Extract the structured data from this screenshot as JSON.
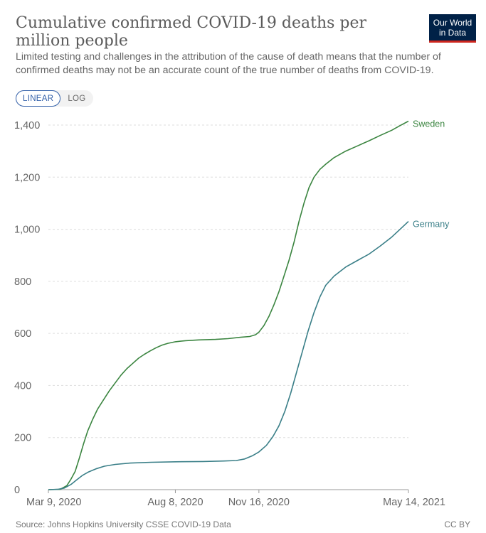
{
  "header": {
    "title": "Cumulative confirmed COVID-19 deaths per million people",
    "subtitle": "Limited testing and challenges in the attribution of the cause of death means that the number of confirmed deaths may not be an accurate count of the true number of deaths from COVID-19.",
    "logo_line1": "Our World",
    "logo_line2": "in Data"
  },
  "controls": {
    "linear_label": "LINEAR",
    "log_label": "LOG",
    "selected": "LINEAR"
  },
  "footer": {
    "source": "Source: Johns Hopkins University CSSE COVID-19 Data",
    "license": "CC BY"
  },
  "chart_data": {
    "type": "line",
    "title": "Cumulative confirmed COVID-19 deaths per million people",
    "xlabel": "",
    "ylabel": "",
    "x_ticks": [
      "Mar 9, 2020",
      "Aug 8, 2020",
      "Nov 16, 2020",
      "May 14, 2021"
    ],
    "x_start": "2020-03-09",
    "x_end": "2021-05-14",
    "ylim": [
      0,
      1400
    ],
    "y_ticks": [
      0,
      200,
      400,
      600,
      800,
      1000,
      1200,
      1400
    ],
    "y_tick_labels": [
      "0",
      "200",
      "400",
      "600",
      "800",
      "1,000",
      "1,200",
      "1,400"
    ],
    "grid": true,
    "legend": "line-end labels",
    "series": [
      {
        "name": "Sweden",
        "color": "#3b8540",
        "points": [
          [
            "2020-03-09",
            0
          ],
          [
            "2020-03-23",
            1
          ],
          [
            "2020-03-31",
            15
          ],
          [
            "2020-04-05",
            40
          ],
          [
            "2020-04-10",
            70
          ],
          [
            "2020-04-15",
            120
          ],
          [
            "2020-04-20",
            175
          ],
          [
            "2020-04-25",
            225
          ],
          [
            "2020-05-01",
            270
          ],
          [
            "2020-05-07",
            310
          ],
          [
            "2020-05-14",
            345
          ],
          [
            "2020-05-21",
            380
          ],
          [
            "2020-05-28",
            410
          ],
          [
            "2020-06-04",
            440
          ],
          [
            "2020-06-11",
            465
          ],
          [
            "2020-06-18",
            485
          ],
          [
            "2020-06-25",
            505
          ],
          [
            "2020-07-02",
            520
          ],
          [
            "2020-07-09",
            533
          ],
          [
            "2020-07-16",
            545
          ],
          [
            "2020-07-23",
            555
          ],
          [
            "2020-07-30",
            562
          ],
          [
            "2020-08-08",
            568
          ],
          [
            "2020-08-20",
            572
          ],
          [
            "2020-09-05",
            575
          ],
          [
            "2020-09-25",
            577
          ],
          [
            "2020-10-10",
            580
          ],
          [
            "2020-10-25",
            585
          ],
          [
            "2020-11-05",
            588
          ],
          [
            "2020-11-12",
            595
          ],
          [
            "2020-11-16",
            605
          ],
          [
            "2020-11-22",
            630
          ],
          [
            "2020-11-28",
            665
          ],
          [
            "2020-12-04",
            710
          ],
          [
            "2020-12-10",
            760
          ],
          [
            "2020-12-16",
            820
          ],
          [
            "2020-12-22",
            880
          ],
          [
            "2020-12-28",
            950
          ],
          [
            "2021-01-03",
            1030
          ],
          [
            "2021-01-09",
            1100
          ],
          [
            "2021-01-15",
            1160
          ],
          [
            "2021-01-21",
            1200
          ],
          [
            "2021-01-28",
            1230
          ],
          [
            "2021-02-04",
            1250
          ],
          [
            "2021-02-14",
            1275
          ],
          [
            "2021-02-28",
            1300
          ],
          [
            "2021-03-14",
            1320
          ],
          [
            "2021-03-28",
            1340
          ],
          [
            "2021-04-10",
            1360
          ],
          [
            "2021-04-24",
            1380
          ],
          [
            "2021-05-04",
            1398
          ],
          [
            "2021-05-14",
            1415
          ]
        ]
      },
      {
        "name": "Germany",
        "color": "#3a7f88",
        "points": [
          [
            "2020-03-09",
            0
          ],
          [
            "2020-03-20",
            1
          ],
          [
            "2020-03-28",
            6
          ],
          [
            "2020-04-05",
            20
          ],
          [
            "2020-04-12",
            38
          ],
          [
            "2020-04-19",
            55
          ],
          [
            "2020-04-26",
            68
          ],
          [
            "2020-05-05",
            80
          ],
          [
            "2020-05-15",
            90
          ],
          [
            "2020-05-28",
            97
          ],
          [
            "2020-06-15",
            102
          ],
          [
            "2020-07-10",
            105
          ],
          [
            "2020-08-08",
            107
          ],
          [
            "2020-09-10",
            108
          ],
          [
            "2020-10-05",
            110
          ],
          [
            "2020-10-20",
            112
          ],
          [
            "2020-10-30",
            118
          ],
          [
            "2020-11-08",
            130
          ],
          [
            "2020-11-16",
            145
          ],
          [
            "2020-11-25",
            170
          ],
          [
            "2020-12-03",
            205
          ],
          [
            "2020-12-10",
            245
          ],
          [
            "2020-12-17",
            300
          ],
          [
            "2020-12-24",
            370
          ],
          [
            "2020-12-31",
            450
          ],
          [
            "2021-01-07",
            530
          ],
          [
            "2021-01-14",
            610
          ],
          [
            "2021-01-21",
            680
          ],
          [
            "2021-01-28",
            740
          ],
          [
            "2021-02-04",
            785
          ],
          [
            "2021-02-14",
            820
          ],
          [
            "2021-02-28",
            855
          ],
          [
            "2021-03-14",
            880
          ],
          [
            "2021-03-28",
            905
          ],
          [
            "2021-04-10",
            935
          ],
          [
            "2021-04-24",
            970
          ],
          [
            "2021-05-04",
            1000
          ],
          [
            "2021-05-14",
            1030
          ]
        ]
      }
    ]
  }
}
